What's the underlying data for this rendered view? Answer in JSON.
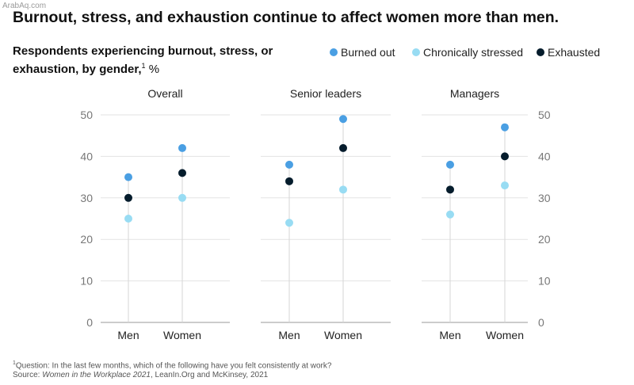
{
  "watermark": "ArabAq.com",
  "title": "Burnout, stress, and exhaustion continue to affect women more than men.",
  "subtitle": {
    "text": "Respondents experiencing burnout, stress, or exhaustion, by gender,",
    "footnote_ref": "1",
    "unit": "%"
  },
  "legend": [
    {
      "name": "Burned out",
      "color": "#4a9fe3"
    },
    {
      "name": "Chronically stressed",
      "color": "#98dcf3"
    },
    {
      "name": "Exhausted",
      "color": "#051c2c"
    }
  ],
  "footnote": {
    "ref": "1",
    "question": "Question: In the last few months, which of the following have you felt consistently at work?",
    "source_label": "Source: ",
    "source_title": "Women in the Workplace 2021",
    "source_rest": ", LeanIn.Org and McKinsey, 2021"
  },
  "chart_data": {
    "type": "scatter",
    "ylim": [
      0,
      50
    ],
    "yticks": [
      "0",
      "10",
      "20",
      "30",
      "40",
      "50"
    ],
    "panels": [
      {
        "title": "Overall",
        "categories": [
          "Men",
          "Women"
        ],
        "series": [
          {
            "name": "Burned out",
            "values": [
              35,
              42
            ]
          },
          {
            "name": "Chronically stressed",
            "values": [
              25,
              30
            ]
          },
          {
            "name": "Exhausted",
            "values": [
              30,
              36
            ]
          }
        ]
      },
      {
        "title": "Senior leaders",
        "categories": [
          "Men",
          "Women"
        ],
        "series": [
          {
            "name": "Burned out",
            "values": [
              38,
              49
            ]
          },
          {
            "name": "Chronically stressed",
            "values": [
              24,
              32
            ]
          },
          {
            "name": "Exhausted",
            "values": [
              34,
              42
            ]
          }
        ]
      },
      {
        "title": "Managers",
        "categories": [
          "Men",
          "Women"
        ],
        "series": [
          {
            "name": "Burned out",
            "values": [
              38,
              47
            ]
          },
          {
            "name": "Chronically stressed",
            "values": [
              26,
              33
            ]
          },
          {
            "name": "Exhausted",
            "values": [
              32,
              40
            ]
          }
        ]
      }
    ]
  }
}
